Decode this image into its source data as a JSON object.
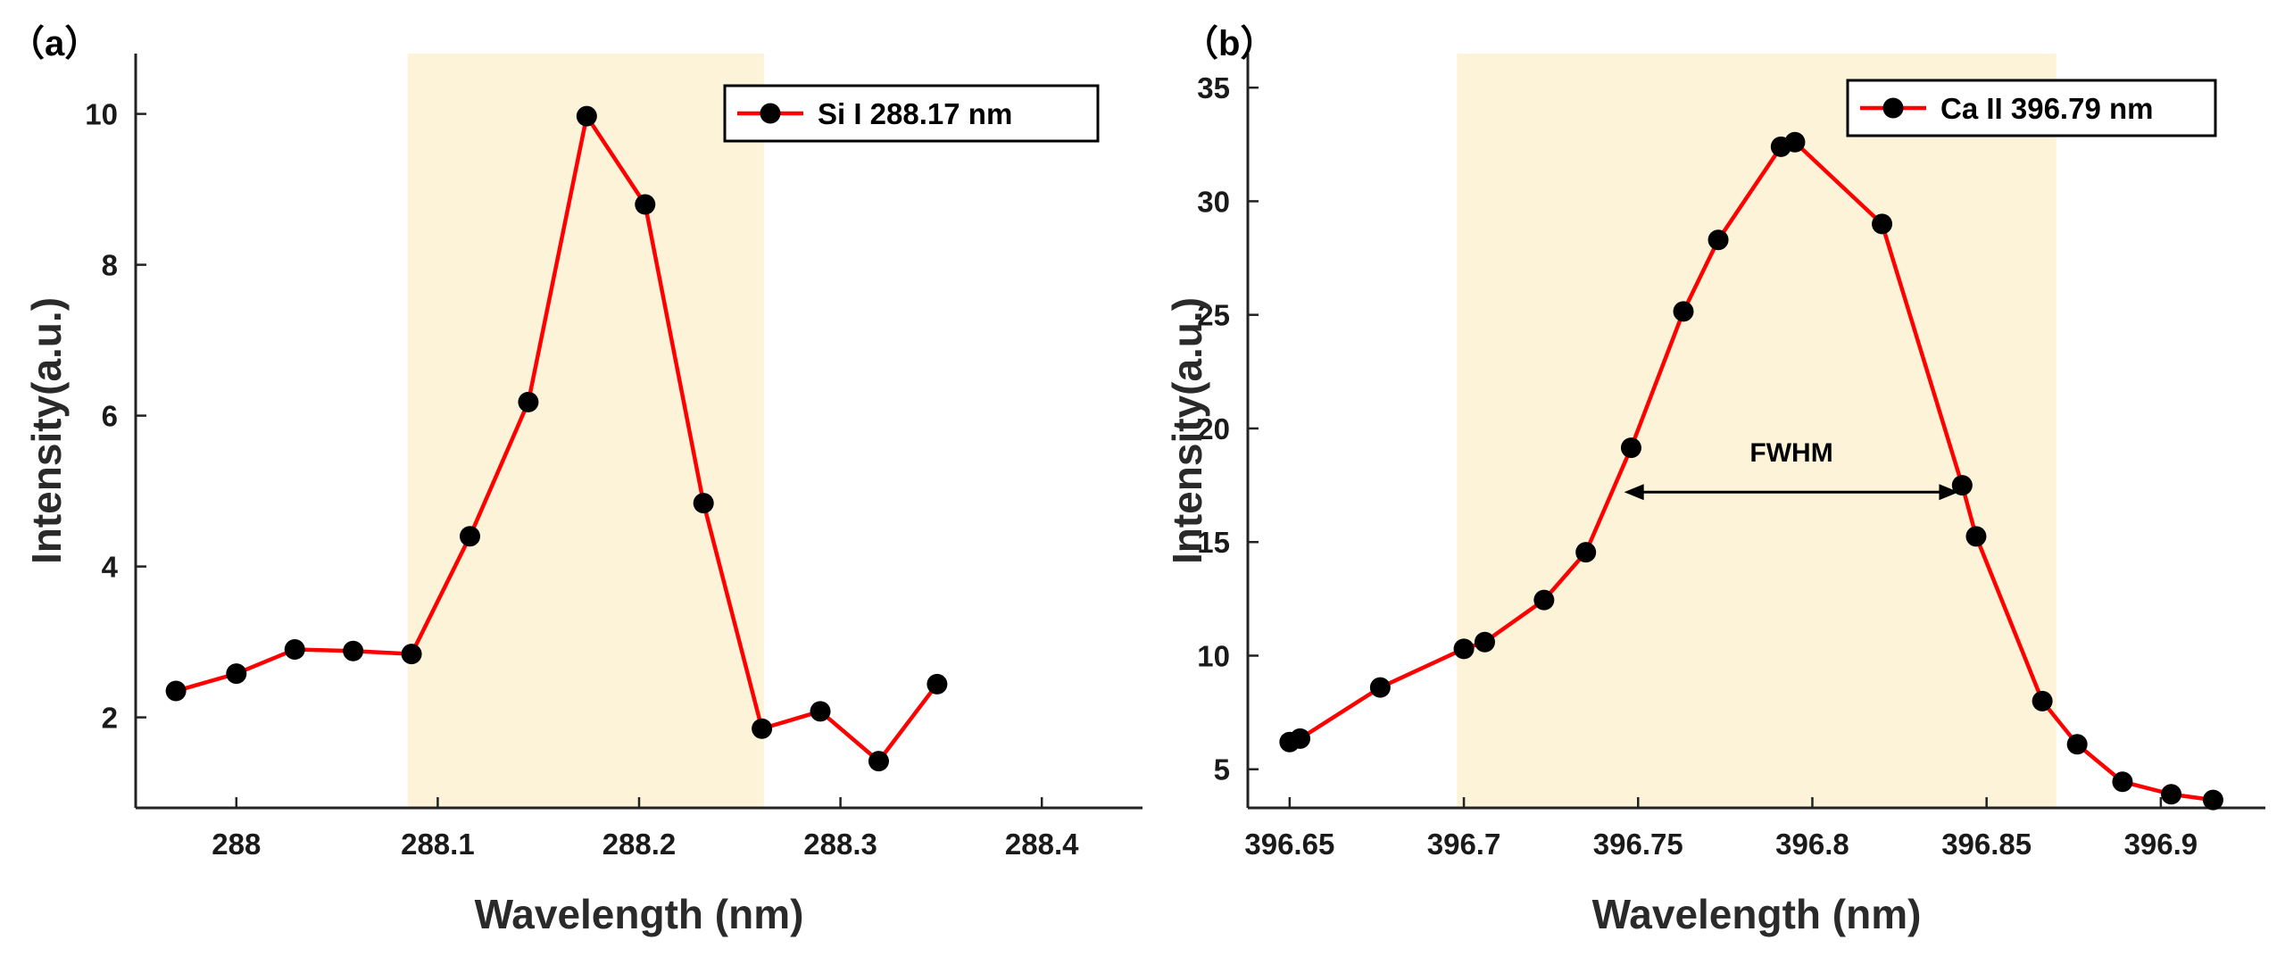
{
  "colors": {
    "line": "#ff0000",
    "marker": "#000000",
    "highlight": "#fdf3d8",
    "axis": "#222222"
  },
  "chart_data": [
    {
      "panel_label": "（a）",
      "type": "line",
      "title": "",
      "xlabel": "Wavelength (nm)",
      "ylabel": "Intensity(a.u.)",
      "xlim": [
        287.95,
        288.45
      ],
      "ylim": [
        0.8,
        10.8
      ],
      "xticks": [
        288,
        288.1,
        288.2,
        288.3,
        288.4
      ],
      "xtick_labels": [
        "288",
        "288.1",
        "288.2",
        "288.3",
        "288.4"
      ],
      "yticks": [
        2,
        4,
        6,
        8,
        10
      ],
      "ytick_labels": [
        "2",
        "4",
        "6",
        "8",
        "10"
      ],
      "highlight_range": [
        288.085,
        288.262
      ],
      "legend": "Si I 288.17 nm",
      "legend_position": "top-right",
      "series": [
        {
          "name": "Si I 288.17 nm",
          "x": [
            287.97,
            288.0,
            288.029,
            288.058,
            288.087,
            288.116,
            288.145,
            288.174,
            288.203,
            288.232,
            288.261,
            288.29,
            288.319,
            288.348
          ],
          "y": [
            2.35,
            2.58,
            2.9,
            2.88,
            2.84,
            4.4,
            6.18,
            9.97,
            8.8,
            4.84,
            1.85,
            2.08,
            1.42,
            2.44
          ]
        }
      ]
    },
    {
      "panel_label": "（b）",
      "type": "line",
      "title": "",
      "xlabel": "Wavelength (nm)",
      "ylabel": "Intensity(a.u.)",
      "xlim": [
        396.638,
        396.93
      ],
      "ylim": [
        3.3,
        36.5
      ],
      "xticks": [
        396.65,
        396.7,
        396.75,
        396.8,
        396.85,
        396.9
      ],
      "xtick_labels": [
        "396.65",
        "396.7",
        "396.75",
        "396.8",
        "396.85",
        "396.9"
      ],
      "yticks": [
        5,
        10,
        15,
        20,
        25,
        30,
        35
      ],
      "ytick_labels": [
        "5",
        "10",
        "15",
        "20",
        "25",
        "30",
        "35"
      ],
      "highlight_range": [
        396.698,
        396.87
      ],
      "legend": "Ca II 396.79 nm",
      "legend_position": "top-right",
      "annotation": {
        "text": "FWHM",
        "x_start": 396.746,
        "x_end": 396.842,
        "y": 17.2
      },
      "series": [
        {
          "name": "Ca II 396.79 nm",
          "x": [
            396.65,
            396.653,
            396.676,
            396.7,
            396.706,
            396.723,
            396.735,
            396.748,
            396.763,
            396.773,
            396.791,
            396.795,
            396.82,
            396.843,
            396.847,
            396.866,
            396.876,
            396.889,
            396.903,
            396.915
          ],
          "y": [
            6.2,
            6.35,
            8.6,
            10.3,
            10.6,
            12.45,
            14.55,
            19.15,
            25.15,
            28.3,
            32.4,
            32.6,
            29.0,
            17.5,
            15.25,
            8.0,
            6.1,
            4.45,
            3.9,
            3.65
          ]
        }
      ]
    }
  ]
}
